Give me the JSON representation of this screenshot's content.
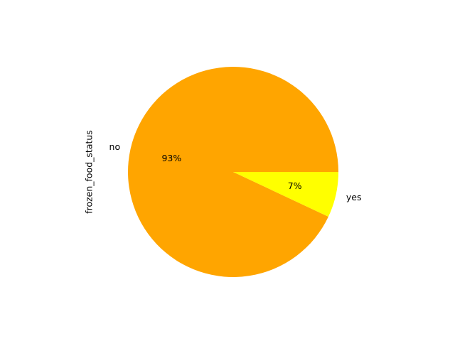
{
  "chart_data": {
    "type": "pie",
    "title": "",
    "ylabel": "frozen_food_status",
    "categories": [
      "no",
      "yes"
    ],
    "values": [
      93,
      7
    ],
    "percent_labels": [
      "93%",
      "7%"
    ],
    "colors": [
      "#ffa500",
      "#ffff00"
    ],
    "start_angle_deg": 0,
    "direction": "counterclockwise",
    "legend": "none"
  }
}
